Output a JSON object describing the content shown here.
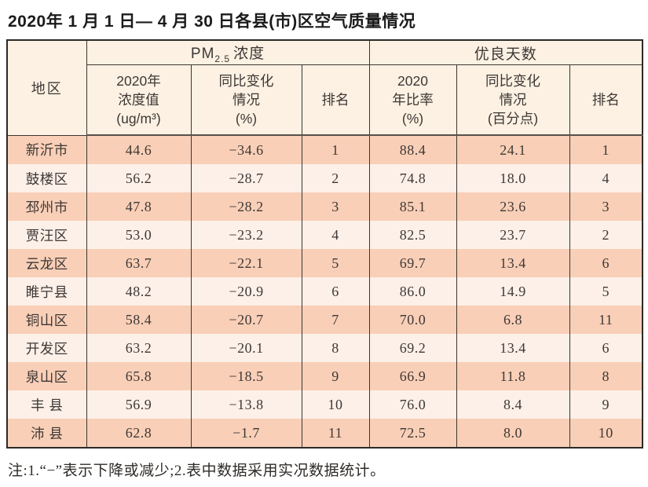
{
  "page": {
    "title": "2020年 1 月 1 日— 4 月 30 日各县(市)区空气质量情况",
    "note": "注:1.“−”表示下降或减少;2.表中数据采用实况数据统计。"
  },
  "colors": {
    "header_bg": "#fcf1e2",
    "row_odd_bg": "#f9cfb7",
    "row_even_bg": "#fdf0e8",
    "border": "#3a3632",
    "text": "#3e3836"
  },
  "table": {
    "header": {
      "region": "地区",
      "pm25_prefix": "PM",
      "pm25_sub": "2.5",
      "pm25_suffix": "浓度",
      "good_days": "优良天数",
      "pm25_value": "2020年\n浓度值\n(ug/m³)",
      "pm25_change": "同比变化\n情况\n(%)",
      "pm25_rank": "排名",
      "good_rate": "2020\n年比率\n(%)",
      "good_change": "同比变化\n情况\n(百分点)",
      "good_rank": "排名"
    },
    "rows": [
      {
        "region": "新沂市",
        "pm25": "44.6",
        "pm25_change": "−34.6",
        "pm25_rank": "1",
        "rate": "88.4",
        "rate_change": "24.1",
        "rate_rank": "1"
      },
      {
        "region": "鼓楼区",
        "pm25": "56.2",
        "pm25_change": "−28.7",
        "pm25_rank": "2",
        "rate": "74.8",
        "rate_change": "18.0",
        "rate_rank": "4"
      },
      {
        "region": "邳州市",
        "pm25": "47.8",
        "pm25_change": "−28.2",
        "pm25_rank": "3",
        "rate": "85.1",
        "rate_change": "23.6",
        "rate_rank": "3"
      },
      {
        "region": "贾汪区",
        "pm25": "53.0",
        "pm25_change": "−23.2",
        "pm25_rank": "4",
        "rate": "82.5",
        "rate_change": "23.7",
        "rate_rank": "2"
      },
      {
        "region": "云龙区",
        "pm25": "63.7",
        "pm25_change": "−22.1",
        "pm25_rank": "5",
        "rate": "69.7",
        "rate_change": "13.4",
        "rate_rank": "6"
      },
      {
        "region": "睢宁县",
        "pm25": "48.2",
        "pm25_change": "−20.9",
        "pm25_rank": "6",
        "rate": "86.0",
        "rate_change": "14.9",
        "rate_rank": "5"
      },
      {
        "region": "铜山区",
        "pm25": "58.4",
        "pm25_change": "−20.7",
        "pm25_rank": "7",
        "rate": "70.0",
        "rate_change": "6.8",
        "rate_rank": "11"
      },
      {
        "region": "开发区",
        "pm25": "63.2",
        "pm25_change": "−20.1",
        "pm25_rank": "8",
        "rate": "69.2",
        "rate_change": "13.4",
        "rate_rank": "6"
      },
      {
        "region": "泉山区",
        "pm25": "65.8",
        "pm25_change": "−18.5",
        "pm25_rank": "9",
        "rate": "66.9",
        "rate_change": "11.8",
        "rate_rank": "8"
      },
      {
        "region": "丰 县",
        "pm25": "56.9",
        "pm25_change": "−13.8",
        "pm25_rank": "10",
        "rate": "76.0",
        "rate_change": "8.4",
        "rate_rank": "9"
      },
      {
        "region": "沛 县",
        "pm25": "62.8",
        "pm25_change": "−1.7",
        "pm25_rank": "11",
        "rate": "72.5",
        "rate_change": "8.0",
        "rate_rank": "10"
      }
    ]
  }
}
